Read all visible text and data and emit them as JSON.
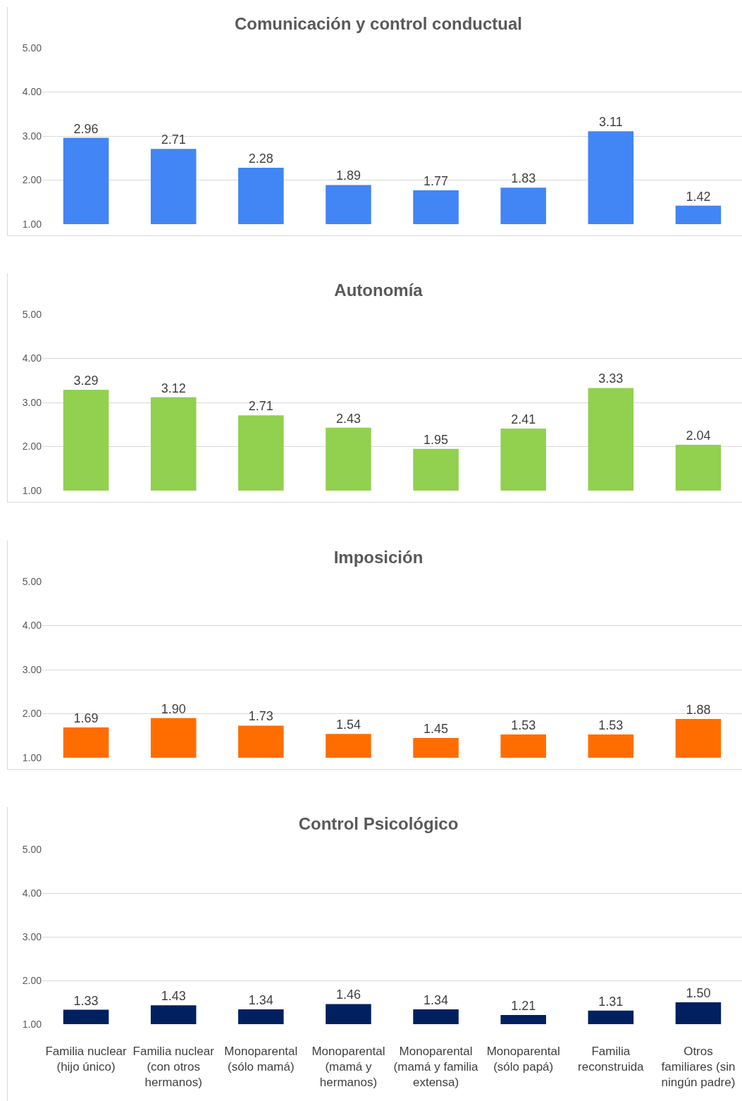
{
  "chart_data": [
    {
      "type": "bar",
      "title": "Comunicación y control conductual",
      "categories": [
        null,
        null,
        null,
        null,
        null,
        null,
        null,
        null
      ],
      "values": [
        2.96,
        2.71,
        2.28,
        1.89,
        1.77,
        1.83,
        3.11,
        1.42
      ],
      "value_labels": [
        "2.96",
        "2.71",
        "2.28",
        "1.89",
        "1.77",
        "1.83",
        "3.11",
        "1.42"
      ],
      "color": "#4285f4",
      "ylim": [
        1,
        5
      ],
      "yticks": [
        {
          "value": 1,
          "label": "1.00"
        },
        {
          "value": 2,
          "label": "2.00"
        },
        {
          "value": 3,
          "label": "3.00"
        },
        {
          "value": 4,
          "label": "4.00"
        },
        {
          "value": 5,
          "label": "5.00"
        }
      ],
      "grid": "y",
      "tick_labels": "y"
    },
    {
      "type": "bar",
      "title": "Autonomía",
      "categories": [
        null,
        null,
        null,
        null,
        null,
        null,
        null,
        null
      ],
      "values": [
        3.29,
        3.12,
        2.71,
        2.43,
        1.95,
        2.41,
        3.33,
        2.04
      ],
      "value_labels": [
        "3.29",
        "3.12",
        "2.71",
        "2.43",
        "1.95",
        "2.41",
        "3.33",
        "2.04"
      ],
      "color": "#92d050",
      "ylim": [
        1,
        5
      ],
      "yticks": [
        {
          "value": 1,
          "label": "1.00"
        },
        {
          "value": 2,
          "label": "2.00"
        },
        {
          "value": 3,
          "label": "3.00"
        },
        {
          "value": 4,
          "label": "4.00"
        },
        {
          "value": 5,
          "label": "5.00"
        }
      ],
      "grid": "y",
      "tick_labels": "y"
    },
    {
      "type": "bar",
      "title": "Imposición",
      "categories": [
        null,
        null,
        null,
        null,
        null,
        null,
        null,
        null
      ],
      "values": [
        1.69,
        1.9,
        1.73,
        1.54,
        1.45,
        1.53,
        1.53,
        1.88
      ],
      "value_labels": [
        "1.69",
        "1.90",
        "1.73",
        "1.54",
        "1.45",
        "1.53",
        "1.53",
        "1.88"
      ],
      "color": "#ff6d01",
      "ylim": [
        1,
        5
      ],
      "yticks": [
        {
          "value": 1,
          "label": "1.00"
        },
        {
          "value": 2,
          "label": "2.00"
        },
        {
          "value": 3,
          "label": "3.00"
        },
        {
          "value": 4,
          "label": "4.00"
        },
        {
          "value": 5,
          "label": "5.00"
        }
      ],
      "grid": "y",
      "tick_labels": "y"
    },
    {
      "type": "bar",
      "title": "Control Psicológico",
      "categories": [
        "Familia nuclear (hijo único)",
        "Familia nuclear (con otros hermanos)",
        "Monoparental (sólo mamá)",
        "Monoparental (mamá y hermanos)",
        "Monoparental (mamá y familia extensa)",
        "Monoparental (sólo papá)",
        "Familia reconstruida",
        "Otros familiares (sin ningún padre)"
      ],
      "values": [
        1.33,
        1.43,
        1.34,
        1.46,
        1.34,
        1.21,
        1.31,
        1.5
      ],
      "value_labels": [
        "1.33",
        "1.43",
        "1.34",
        "1.46",
        "1.34",
        "1.21",
        "1.31",
        "1.50"
      ],
      "color": "#002060",
      "ylim": [
        1,
        5
      ],
      "yticks": [
        {
          "value": 1,
          "label": "1.00"
        },
        {
          "value": 2,
          "label": "2.00"
        },
        {
          "value": 3,
          "label": "3.00"
        },
        {
          "value": 4,
          "label": "4.00"
        },
        {
          "value": 5,
          "label": "5.00"
        }
      ],
      "grid": "y"
    }
  ]
}
